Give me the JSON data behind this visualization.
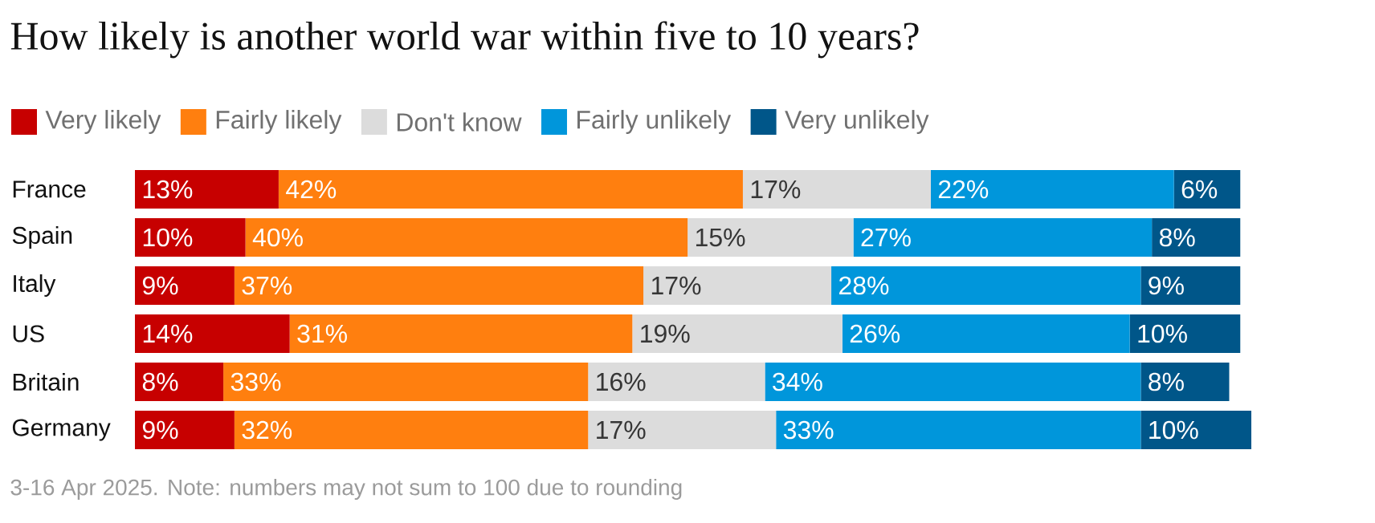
{
  "chart_data": {
    "type": "bar",
    "orientation": "horizontal",
    "stacked": true,
    "legend": "top left",
    "title": "How likely is another world war within five to 10 years?",
    "annotations": [
      "3-16 Apr 2025. Note: numbers may not sum to 100 due to rounding"
    ],
    "categories": [
      "France",
      "Spain",
      "Italy",
      "US",
      "Britain",
      "Germany"
    ],
    "series": [
      {
        "name": "Very likely",
        "color": "#c70000",
        "values": [
          13,
          10,
          9,
          14,
          8,
          9
        ],
        "value_labels": [
          "13%",
          "10%",
          "9%",
          "14%",
          "8%",
          "9%"
        ]
      },
      {
        "name": "Fairly likely",
        "color": "#ff7f0f",
        "values": [
          42,
          40,
          37,
          31,
          33,
          32
        ],
        "value_labels": [
          "42%",
          "40%",
          "37%",
          "31%",
          "33%",
          "32%"
        ]
      },
      {
        "name": "Don't know",
        "color": "#dcdcdc",
        "values": [
          17,
          15,
          17,
          19,
          16,
          17
        ],
        "value_labels": [
          "17%",
          "15%",
          "17%",
          "19%",
          "16%",
          "17%"
        ]
      },
      {
        "name": "Fairly unlikely",
        "color": "#0096db",
        "values": [
          22,
          27,
          28,
          26,
          34,
          33
        ],
        "value_labels": [
          "22%",
          "27%",
          "28%",
          "26%",
          "34%",
          "33%"
        ]
      },
      {
        "name": "Very unlikely",
        "color": "#005689",
        "values": [
          6,
          8,
          9,
          10,
          8,
          10
        ],
        "value_labels": [
          "6%",
          "8%",
          "9%",
          "10%",
          "8%",
          "10%"
        ]
      }
    ]
  }
}
